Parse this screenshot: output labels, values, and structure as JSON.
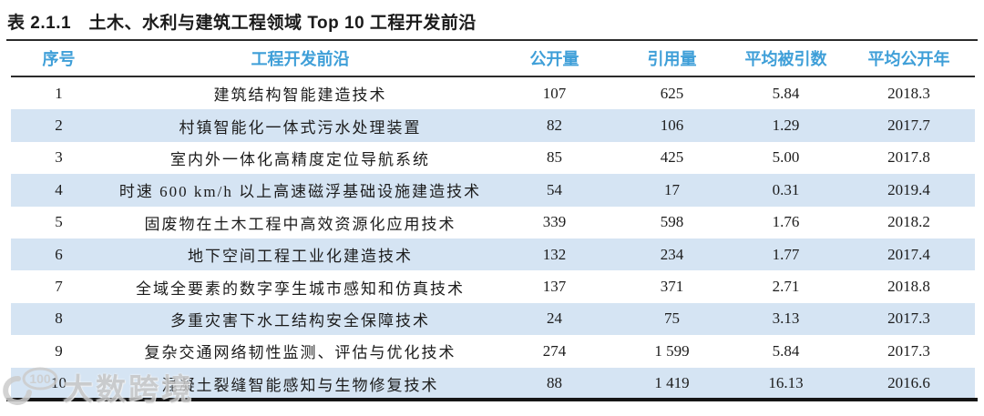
{
  "title": "表 2.1.1　土木、水利与建筑工程领域 Top 10 工程开发前沿",
  "table": {
    "headers": [
      "序号",
      "工程开发前沿",
      "公开量",
      "引用量",
      "平均被引数",
      "平均公开年"
    ],
    "col_keys": [
      "rank",
      "front",
      "published",
      "citations",
      "avg-cited",
      "avg-year"
    ],
    "rows": [
      [
        "1",
        "建筑结构智能建造技术",
        "107",
        "625",
        "5.84",
        "2018.3"
      ],
      [
        "2",
        "村镇智能化一体式污水处理装置",
        "82",
        "106",
        "1.29",
        "2017.7"
      ],
      [
        "3",
        "室内外一体化高精度定位导航系统",
        "85",
        "425",
        "5.00",
        "2017.8"
      ],
      [
        "4",
        "时速 600 km/h 以上高速磁浮基础设施建造技术",
        "54",
        "17",
        "0.31",
        "2019.4"
      ],
      [
        "5",
        "固废物在土木工程中高效资源化应用技术",
        "339",
        "598",
        "1.76",
        "2018.2"
      ],
      [
        "6",
        "地下空间工程工业化建造技术",
        "132",
        "234",
        "1.77",
        "2017.4"
      ],
      [
        "7",
        "全域全要素的数字孪生城市感知和仿真技术",
        "137",
        "371",
        "2.71",
        "2018.8"
      ],
      [
        "8",
        "多重灾害下水工结构安全保障技术",
        "24",
        "75",
        "3.13",
        "2017.3"
      ],
      [
        "9",
        "复杂交通网络韧性监测、评估与优化技术",
        "274",
        "1 599",
        "5.84",
        "2017.3"
      ],
      [
        "10",
        "混凝土裂缝智能感知与生物修复技术",
        "88",
        "1 419",
        "16.13",
        "2016.6"
      ]
    ]
  },
  "watermark": {
    "logo": "100",
    "text": "大数跨境"
  },
  "colors": {
    "header_text": "#3f9fd8",
    "row_stripe": "#d5e4f3",
    "rule_dark": "#2b2b2b"
  }
}
